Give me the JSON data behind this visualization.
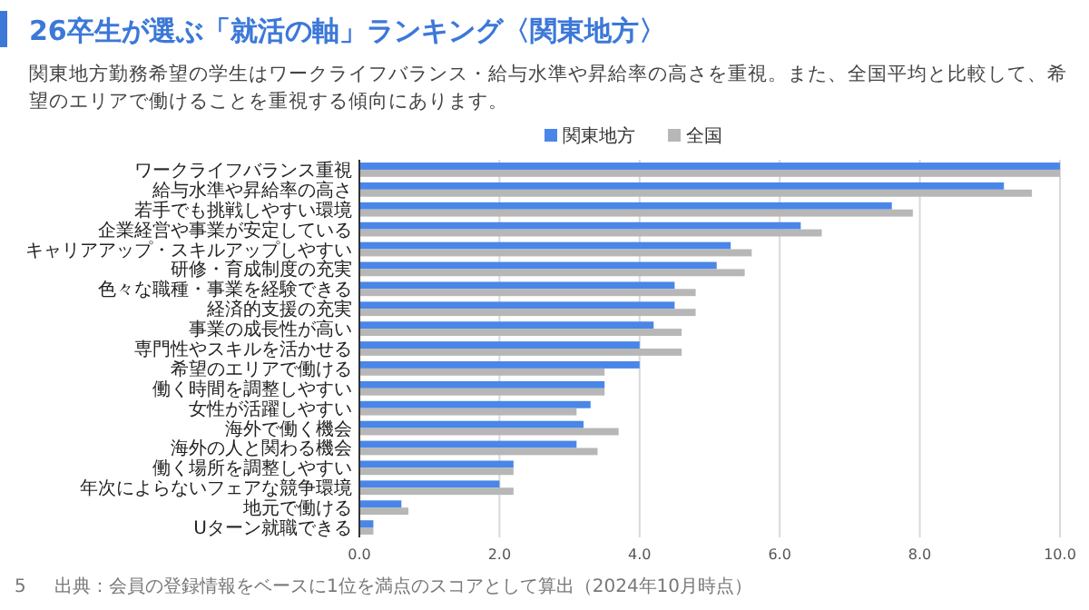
{
  "chart_data": {
    "type": "bar",
    "orientation": "horizontal",
    "title": "26卒生が選ぶ「就活の軸」ランキング〈関東地方〉",
    "subtitle": "関東地方勤務希望の学生はワークライフバランス・給与水準や昇給率の高さを重視。また、全国平均と比較して、希望のエリアで働けることを重視する傾向にあります。",
    "categories": [
      "ワークライフバランス重視",
      "給与水準や昇給率の高さ",
      "若手でも挑戦しやすい環境",
      "企業経営や事業が安定している",
      "キャリアアップ・スキルアップしやすい",
      "研修・育成制度の充実",
      "色々な職種・事業を経験できる",
      "経済的支援の充実",
      "事業の成長性が高い",
      "専門性やスキルを活かせる",
      "希望のエリアで働ける",
      "働く時間を調整しやすい",
      "女性が活躍しやすい",
      "海外で働く機会",
      "海外の人と関わる機会",
      "働く場所を調整しやすい",
      "年次によらないフェアな競争環境",
      "地元で働ける",
      "Uターン就職できる"
    ],
    "series": [
      {
        "name": "関東地方",
        "color": "#4a86e8",
        "values": [
          10.0,
          9.2,
          7.6,
          6.3,
          5.3,
          5.1,
          4.5,
          4.5,
          4.2,
          4.0,
          4.0,
          3.5,
          3.3,
          3.2,
          3.1,
          2.2,
          2.0,
          0.6,
          0.2
        ]
      },
      {
        "name": "全国",
        "color": "#b7b7b7",
        "values": [
          10.0,
          9.6,
          7.9,
          6.6,
          5.6,
          5.5,
          4.8,
          4.8,
          4.6,
          4.6,
          3.5,
          3.5,
          3.1,
          3.7,
          3.4,
          2.2,
          2.2,
          0.7,
          0.2
        ]
      }
    ],
    "xlim": [
      0,
      10
    ],
    "xticks": [
      {
        "value": 0,
        "label": "0.0"
      },
      {
        "value": 2,
        "label": "2.0"
      },
      {
        "value": 4,
        "label": "4.0"
      },
      {
        "value": 6,
        "label": "6.0"
      },
      {
        "value": 8,
        "label": "8.0"
      },
      {
        "value": 10,
        "label": "10.0"
      }
    ],
    "grid": "x",
    "legend": "top",
    "annotations": [
      "出典：会員の登録情報をベースに1位を満点のスコアとして算出（2024年10月時点）",
      "5"
    ]
  }
}
